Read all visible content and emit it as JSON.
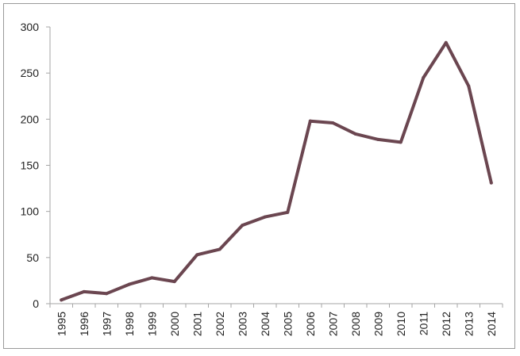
{
  "chart_data": {
    "type": "line",
    "title": "",
    "xlabel": "",
    "ylabel": "",
    "categories": [
      "1995",
      "1996",
      "1997",
      "1998",
      "1999",
      "2000",
      "2001",
      "2002",
      "2003",
      "2004",
      "2005",
      "2006",
      "2007",
      "2008",
      "2009",
      "2010",
      "2011",
      "2012",
      "2013",
      "2014"
    ],
    "series": [
      {
        "values": [
          4,
          13,
          11,
          21,
          28,
          24,
          53,
          59,
          85,
          94,
          99,
          198,
          196,
          184,
          178,
          175,
          245,
          283,
          236,
          131
        ]
      }
    ],
    "ylim": [
      0,
      300
    ],
    "yticks": [
      0,
      50,
      100,
      150,
      200,
      250,
      300
    ],
    "grid": false,
    "line_color": "#6b4650",
    "axis_color": "#a6a6a6"
  }
}
